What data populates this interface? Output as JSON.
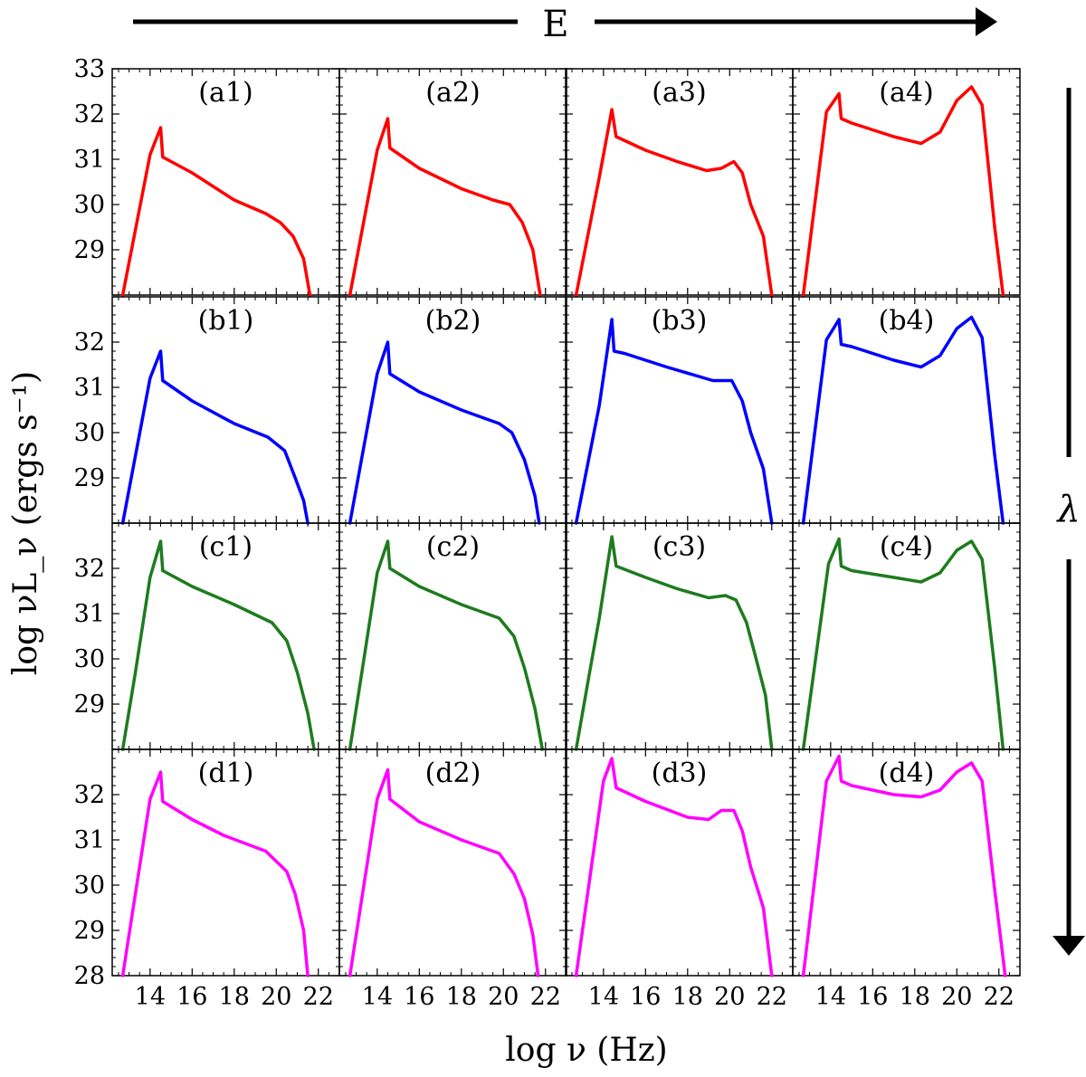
{
  "figure": {
    "top_arrow_label": "E",
    "right_arrow_label": "λ",
    "xlabel": "log ν (Hz)",
    "ylabel": "log νL_ν (ergs s⁻¹)"
  },
  "chart_data": {
    "type": "line",
    "layout": "4x4 grid of panels sharing axes",
    "xlabel": "log ν (Hz)",
    "ylabel": "log νL_ν (ergs s⁻¹)",
    "xlim": [
      12.2,
      23.0
    ],
    "ylim": [
      28.0,
      33.0
    ],
    "x_ticks": [
      14,
      16,
      18,
      20,
      22
    ],
    "x_tick_labels": [
      "14",
      "16",
      "18",
      "20",
      "22"
    ],
    "y_ticks": [
      28,
      29,
      30,
      31,
      32,
      33
    ],
    "y_tick_labels": [
      "28",
      "29",
      "30",
      "31",
      "32",
      "33"
    ],
    "row_colors": [
      "#ff0000",
      "#0000ff",
      "#1e7b1e",
      "#ff00ff"
    ],
    "panels": [
      {
        "label": "(a1)",
        "row": 0,
        "col": 0,
        "x": [
          12.7,
          14.0,
          14.5,
          14.6,
          16.0,
          18.0,
          19.5,
          20.2,
          20.8,
          21.3,
          21.6
        ],
        "y": [
          28.0,
          31.1,
          31.7,
          31.05,
          30.7,
          30.1,
          29.8,
          29.6,
          29.3,
          28.8,
          28.0
        ]
      },
      {
        "label": "(a2)",
        "row": 0,
        "col": 1,
        "x": [
          12.7,
          14.0,
          14.5,
          14.6,
          16.0,
          18.0,
          19.5,
          20.3,
          20.9,
          21.4,
          21.75
        ],
        "y": [
          28.0,
          31.2,
          31.9,
          31.25,
          30.8,
          30.35,
          30.1,
          30.0,
          29.6,
          29.0,
          28.0
        ]
      },
      {
        "label": "(a3)",
        "row": 0,
        "col": 2,
        "x": [
          12.7,
          13.8,
          14.4,
          14.6,
          16.0,
          17.5,
          18.9,
          19.6,
          20.2,
          20.6,
          21.0,
          21.6,
          22.0
        ],
        "y": [
          28.0,
          30.6,
          32.1,
          31.5,
          31.2,
          30.95,
          30.75,
          30.8,
          30.95,
          30.7,
          30.0,
          29.3,
          28.0
        ]
      },
      {
        "label": "(a4)",
        "row": 0,
        "col": 3,
        "x": [
          12.7,
          13.8,
          14.4,
          14.5,
          15.0,
          17.0,
          18.3,
          19.2,
          20.0,
          20.7,
          21.2,
          21.8,
          22.2
        ],
        "y": [
          28.0,
          32.05,
          32.45,
          31.9,
          31.8,
          31.5,
          31.35,
          31.6,
          32.3,
          32.6,
          32.2,
          29.5,
          28.0
        ]
      },
      {
        "label": "(b1)",
        "row": 1,
        "col": 0,
        "x": [
          12.7,
          14.0,
          14.5,
          14.6,
          16.0,
          18.0,
          19.6,
          20.4,
          20.9,
          21.3,
          21.5
        ],
        "y": [
          28.0,
          31.2,
          31.8,
          31.15,
          30.7,
          30.2,
          29.9,
          29.6,
          29.0,
          28.5,
          28.0
        ]
      },
      {
        "label": "(b2)",
        "row": 1,
        "col": 1,
        "x": [
          12.7,
          14.0,
          14.5,
          14.6,
          16.0,
          18.0,
          19.8,
          20.4,
          21.0,
          21.5,
          21.7
        ],
        "y": [
          28.0,
          31.3,
          32.0,
          31.3,
          30.9,
          30.5,
          30.2,
          30.0,
          29.4,
          28.6,
          28.0
        ]
      },
      {
        "label": "(b3)",
        "row": 1,
        "col": 2,
        "x": [
          12.7,
          13.8,
          14.4,
          14.5,
          15.0,
          17.0,
          19.2,
          20.1,
          20.6,
          21.0,
          21.6,
          22.0
        ],
        "y": [
          28.0,
          30.6,
          32.5,
          31.8,
          31.75,
          31.45,
          31.15,
          31.15,
          30.7,
          30.0,
          29.2,
          28.0
        ]
      },
      {
        "label": "(b4)",
        "row": 1,
        "col": 3,
        "x": [
          12.7,
          13.8,
          14.4,
          14.5,
          15.0,
          17.0,
          18.3,
          19.2,
          20.0,
          20.7,
          21.2,
          21.8,
          22.2
        ],
        "y": [
          28.0,
          32.05,
          32.5,
          31.95,
          31.9,
          31.6,
          31.45,
          31.7,
          32.3,
          32.55,
          32.1,
          29.5,
          28.0
        ]
      },
      {
        "label": "(c1)",
        "row": 2,
        "col": 0,
        "x": [
          12.7,
          13.3,
          14.0,
          14.5,
          14.6,
          16.0,
          18.0,
          19.8,
          20.5,
          21.0,
          21.5,
          21.8
        ],
        "y": [
          28.0,
          29.7,
          31.8,
          32.6,
          31.95,
          31.6,
          31.2,
          30.8,
          30.4,
          29.7,
          28.8,
          28.0
        ]
      },
      {
        "label": "(c2)",
        "row": 2,
        "col": 1,
        "x": [
          12.7,
          13.3,
          14.0,
          14.5,
          14.6,
          16.0,
          18.0,
          19.8,
          20.5,
          21.0,
          21.5,
          21.85
        ],
        "y": [
          28.0,
          29.8,
          31.9,
          32.6,
          32.0,
          31.6,
          31.2,
          30.9,
          30.5,
          29.8,
          28.9,
          28.0
        ]
      },
      {
        "label": "(c3)",
        "row": 2,
        "col": 2,
        "x": [
          12.7,
          13.3,
          13.8,
          14.4,
          14.6,
          16.0,
          17.5,
          19.0,
          19.8,
          20.3,
          20.8,
          21.2,
          21.7,
          22.0
        ],
        "y": [
          28.0,
          29.6,
          30.9,
          32.7,
          32.05,
          31.8,
          31.55,
          31.35,
          31.4,
          31.3,
          30.8,
          30.1,
          29.2,
          28.0
        ]
      },
      {
        "label": "(c4)",
        "row": 2,
        "col": 3,
        "x": [
          12.7,
          13.9,
          14.4,
          14.5,
          15.0,
          17.0,
          18.3,
          19.2,
          20.0,
          20.7,
          21.2,
          21.8,
          22.2
        ],
        "y": [
          28.0,
          32.1,
          32.65,
          32.05,
          31.95,
          31.8,
          31.7,
          31.9,
          32.4,
          32.6,
          32.2,
          29.8,
          28.0
        ]
      },
      {
        "label": "(d1)",
        "row": 3,
        "col": 0,
        "x": [
          12.7,
          14.0,
          14.5,
          14.6,
          16.0,
          17.5,
          19.5,
          20.5,
          20.9,
          21.3,
          21.5
        ],
        "y": [
          28.0,
          31.9,
          32.5,
          31.85,
          31.45,
          31.1,
          30.75,
          30.3,
          29.8,
          29.0,
          28.0
        ]
      },
      {
        "label": "(d2)",
        "row": 3,
        "col": 1,
        "x": [
          12.7,
          14.0,
          14.5,
          14.6,
          16.0,
          18.0,
          19.8,
          20.5,
          21.0,
          21.4,
          21.65
        ],
        "y": [
          28.0,
          31.9,
          32.55,
          31.9,
          31.4,
          31.0,
          30.7,
          30.25,
          29.7,
          28.9,
          28.0
        ]
      },
      {
        "label": "(d3)",
        "row": 3,
        "col": 2,
        "x": [
          12.7,
          14.0,
          14.4,
          14.6,
          16.0,
          18.0,
          19.0,
          19.6,
          20.2,
          20.6,
          21.0,
          21.6,
          22.0
        ],
        "y": [
          28.0,
          32.3,
          32.8,
          32.15,
          31.85,
          31.5,
          31.45,
          31.65,
          31.65,
          31.2,
          30.4,
          29.5,
          28.0
        ]
      },
      {
        "label": "(d4)",
        "row": 3,
        "col": 3,
        "x": [
          12.7,
          13.8,
          14.4,
          14.5,
          15.0,
          17.0,
          18.3,
          19.2,
          20.0,
          20.7,
          21.2,
          21.8,
          22.3
        ],
        "y": [
          28.0,
          32.3,
          32.85,
          32.3,
          32.2,
          32.0,
          31.95,
          32.1,
          32.5,
          32.7,
          32.3,
          29.9,
          28.0
        ]
      }
    ]
  }
}
